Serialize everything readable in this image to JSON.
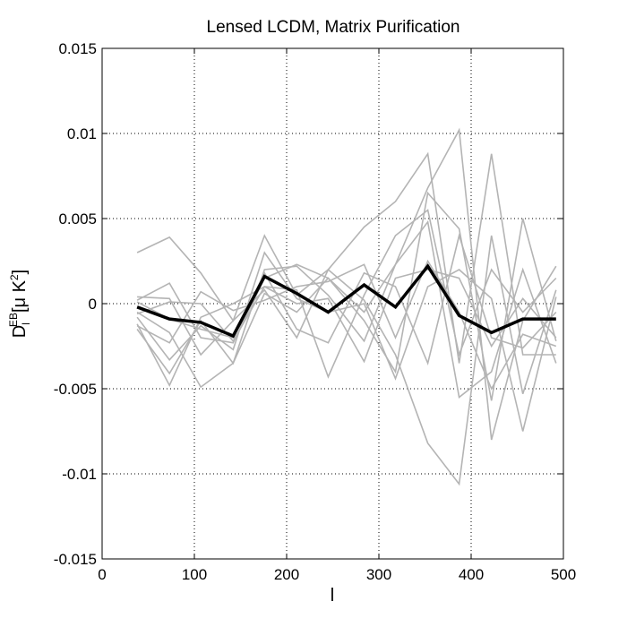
{
  "chart_data": {
    "type": "line",
    "title": "Lensed LCDM, Matrix Purification",
    "xlabel": "l",
    "ylabel": {
      "main": "D",
      "subscript": "l",
      "superscript": "EB",
      "unit": "[μ K",
      "unit_superscript": "2",
      "unit_close": "]"
    },
    "xlim": [
      0,
      500
    ],
    "ylim": [
      -0.015,
      0.015
    ],
    "xticks": [
      0,
      100,
      200,
      300,
      400,
      500
    ],
    "xtick_labels": [
      "0",
      "100",
      "200",
      "300",
      "400",
      "500"
    ],
    "yticks": [
      0.015,
      0.01,
      0.005,
      0,
      -0.005,
      -0.01,
      -0.015
    ],
    "ytick_labels": [
      "0.015",
      "0.01",
      "0.005",
      "0",
      "-0.005",
      "-0.01",
      "-0.015"
    ],
    "grid": true,
    "x": [
      38,
      73,
      107,
      142,
      176,
      211,
      245,
      284,
      318,
      353,
      387,
      422,
      456,
      492
    ],
    "colors": {
      "realizations": "#b4b4b4",
      "mean": "#000000",
      "grid": "#000000",
      "axes": "#000000"
    },
    "series": [
      {
        "role": "realization",
        "values": [
          0.003,
          0.0039,
          0.0018,
          -0.001,
          0.004,
          0.0005,
          0.002,
          0.0045,
          0.006,
          0.0088,
          -0.0035,
          0.0088,
          -0.003,
          -0.003
        ]
      },
      {
        "role": "realization",
        "values": [
          0.0002,
          0.0012,
          -0.002,
          -0.0023,
          0.0015,
          0.0023,
          0.0015,
          -0.0005,
          0.0023,
          0.0068,
          0.0102,
          -0.008,
          -0.001,
          0.0022
        ]
      },
      {
        "role": "realization",
        "values": [
          -0.0012,
          -0.0048,
          -0.0008,
          0.0,
          0.001,
          0.0008,
          -0.0043,
          0.0005,
          0.004,
          0.0055,
          -0.003,
          0.002,
          -0.0005,
          0.0015
        ]
      },
      {
        "role": "realization",
        "values": [
          -0.0015,
          -0.0041,
          -0.001,
          -0.0035,
          0.002,
          0.0022,
          0.0005,
          -0.0022,
          0.0023,
          0.0048,
          -0.0055,
          -0.004,
          0.002,
          -0.0035
        ]
      },
      {
        "role": "realization",
        "values": [
          0.0004,
          0.0003,
          -0.003,
          -0.001,
          0.0008,
          -0.002,
          0.002,
          0.0002,
          -0.003,
          -0.0082,
          -0.0106,
          0.004,
          -0.0053,
          0.0008
        ]
      },
      {
        "role": "realization",
        "values": [
          -0.0005,
          -0.0017,
          -0.0049,
          -0.0035,
          0.0006,
          -0.0005,
          0.0015,
          -0.001,
          -0.004,
          0.0065,
          0.0044,
          -0.0057,
          0.005,
          -0.0022
        ]
      },
      {
        "role": "realization",
        "values": [
          -0.0008,
          -0.0033,
          -0.0013,
          -0.0027,
          0.003,
          0.0003,
          -0.0005,
          0.0,
          -0.0044,
          0.001,
          0.002,
          0.0003,
          -0.0075,
          0.0004
        ]
      },
      {
        "role": "realization",
        "values": [
          -0.0013,
          -0.0023,
          0.0007,
          -0.0004,
          0.0002,
          0.001,
          0.0013,
          0.0023,
          -0.002,
          0.0025,
          -0.0005,
          -0.005,
          -0.0018,
          -0.0025
        ]
      },
      {
        "role": "realization",
        "values": [
          0.0001,
          -0.0009,
          -0.0015,
          -0.002,
          0.0018,
          -0.0015,
          -0.0023,
          0.0018,
          0.001,
          -0.0035,
          0.004,
          -0.002,
          -0.0026,
          -0.0005
        ]
      },
      {
        "role": "realization",
        "values": [
          -0.0006,
          0.0001,
          0.0,
          -0.0022,
          0.001,
          0.0,
          0.0003,
          -0.0034,
          0.0015,
          0.002,
          0.0015,
          -0.0025,
          0.0003,
          -0.002
        ]
      },
      {
        "role": "mean",
        "values": [
          -0.0002,
          -0.0009,
          -0.0011,
          -0.0019,
          0.0016,
          0.0006,
          -0.0005,
          0.0011,
          -0.0002,
          0.0022,
          -0.0007,
          -0.0017,
          -0.0009,
          -0.0009
        ]
      }
    ]
  }
}
